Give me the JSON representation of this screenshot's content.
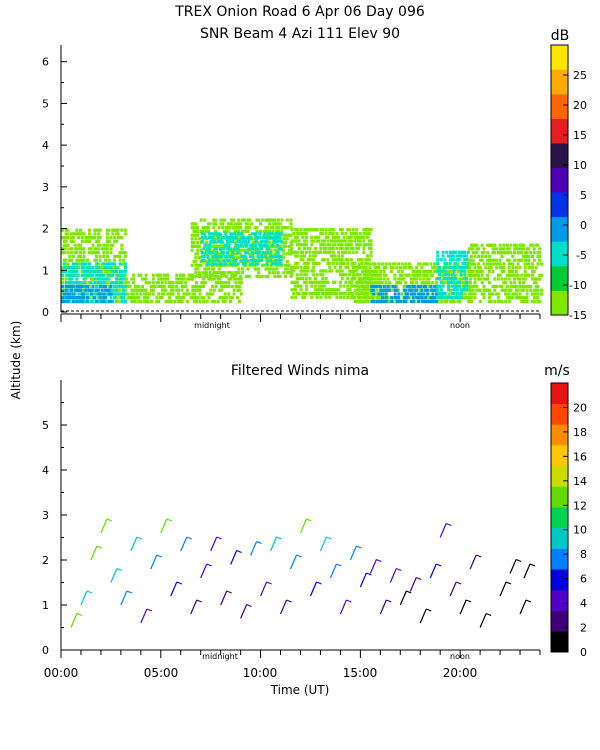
{
  "chart_data": [
    {
      "type": "heatmap",
      "title": "TREX Onion Road    6 Apr 06 Day 096",
      "subtitle": "SNR Beam 4 Azi 111 Elev 90",
      "ylabel": "Altitude (km)",
      "xlim": [
        0,
        24
      ],
      "ylim": [
        0,
        6.4
      ],
      "yticks": [
        "0",
        "1",
        "2",
        "3",
        "4",
        "5",
        "6"
      ],
      "x_markers": [
        "midnight",
        "noon"
      ],
      "colorbar": {
        "unit": "dB",
        "ticks": [
          "25",
          "20",
          "15",
          "10",
          "5",
          "0",
          "-5",
          "-10",
          "-15"
        ],
        "range": [
          -15,
          30
        ],
        "colors": [
          "#7fe600",
          "#00cc33",
          "#00e0c8",
          "#0099e6",
          "#0033e6",
          "#5000b4",
          "#281446",
          "#e61e1e",
          "#ff6600",
          "#ffaa00",
          "#ffe600"
        ]
      },
      "series": [
        {
          "x_range": [
            0,
            3.2
          ],
          "y_range": [
            0.2,
            2.0
          ],
          "snr_db": -13
        },
        {
          "x_range": [
            0,
            3.2
          ],
          "y_range": [
            0.2,
            1.1
          ],
          "snr_db": -6
        },
        {
          "x_range": [
            0,
            2.5
          ],
          "y_range": [
            0.2,
            0.6
          ],
          "snr_db": 0
        },
        {
          "x_range": [
            3.2,
            9.0
          ],
          "y_range": [
            0.2,
            0.9
          ],
          "snr_db": -12
        },
        {
          "x_range": [
            6.5,
            11.5
          ],
          "y_range": [
            0.8,
            2.2
          ],
          "snr_db": -12
        },
        {
          "x_range": [
            7.0,
            11.0
          ],
          "y_range": [
            1.1,
            1.9
          ],
          "snr_db": -6
        },
        {
          "x_range": [
            11.5,
            15.5
          ],
          "y_range": [
            0.3,
            2.0
          ],
          "snr_db": -12
        },
        {
          "x_range": [
            14.5,
            20.5
          ],
          "y_range": [
            0.2,
            1.1
          ],
          "snr_db": -12
        },
        {
          "x_range": [
            15.5,
            18.8
          ],
          "y_range": [
            0.2,
            0.6
          ],
          "snr_db": 0
        },
        {
          "x_range": [
            18.8,
            20.4
          ],
          "y_range": [
            0.3,
            1.4
          ],
          "snr_db": -3
        },
        {
          "x_range": [
            20.4,
            24.0
          ],
          "y_range": [
            0.2,
            1.6
          ],
          "snr_db": -12
        }
      ]
    },
    {
      "type": "scatter",
      "title": "Filtered Winds nima",
      "xlabel": "Time (UT)",
      "ylabel": "Altitude (km)",
      "xlim": [
        0,
        24
      ],
      "ylim": [
        0,
        6
      ],
      "xticks": [
        "00:00",
        "05:00",
        "10:00",
        "15:00",
        "20:00"
      ],
      "yticks": [
        "0",
        "1",
        "2",
        "3",
        "4",
        "5"
      ],
      "x_markers": [
        "midnight",
        "noon"
      ],
      "colorbar": {
        "unit": "m/s",
        "ticks": [
          "20",
          "18",
          "16",
          "14",
          "12",
          "10",
          "8",
          "6",
          "4",
          "2",
          "0"
        ],
        "range": [
          0,
          22
        ],
        "colors": [
          "#000000",
          "#3c0078",
          "#5000c8",
          "#0000dc",
          "#0080ff",
          "#00c8c8",
          "#00d250",
          "#64dc00",
          "#c8dc00",
          "#ffc800",
          "#ff8c00",
          "#ff4600",
          "#e61414"
        ]
      },
      "wind_barbs": [
        {
          "t": 0.5,
          "alt": 0.5,
          "speed_ms": 12
        },
        {
          "t": 1.0,
          "alt": 1.0,
          "speed_ms": 10
        },
        {
          "t": 1.5,
          "alt": 2.0,
          "speed_ms": 12
        },
        {
          "t": 2.0,
          "alt": 2.6,
          "speed_ms": 13
        },
        {
          "t": 2.5,
          "alt": 1.5,
          "speed_ms": 9
        },
        {
          "t": 3.0,
          "alt": 1.0,
          "speed_ms": 7
        },
        {
          "t": 3.5,
          "alt": 2.2,
          "speed_ms": 10
        },
        {
          "t": 4.0,
          "alt": 0.6,
          "speed_ms": 5
        },
        {
          "t": 4.5,
          "alt": 1.8,
          "speed_ms": 8
        },
        {
          "t": 5.0,
          "alt": 2.6,
          "speed_ms": 12
        },
        {
          "t": 5.5,
          "alt": 1.2,
          "speed_ms": 6
        },
        {
          "t": 6.0,
          "alt": 2.2,
          "speed_ms": 8
        },
        {
          "t": 6.5,
          "alt": 0.8,
          "speed_ms": 3
        },
        {
          "t": 7.0,
          "alt": 1.6,
          "speed_ms": 4
        },
        {
          "t": 7.5,
          "alt": 2.2,
          "speed_ms": 4
        },
        {
          "t": 8.0,
          "alt": 1.0,
          "speed_ms": 3
        },
        {
          "t": 8.5,
          "alt": 1.9,
          "speed_ms": 6
        },
        {
          "t": 9.0,
          "alt": 0.7,
          "speed_ms": 2
        },
        {
          "t": 9.5,
          "alt": 2.1,
          "speed_ms": 7
        },
        {
          "t": 10.0,
          "alt": 1.2,
          "speed_ms": 4
        },
        {
          "t": 10.5,
          "alt": 2.2,
          "speed_ms": 9
        },
        {
          "t": 11.0,
          "alt": 0.8,
          "speed_ms": 2
        },
        {
          "t": 11.5,
          "alt": 1.8,
          "speed_ms": 8
        },
        {
          "t": 12.0,
          "alt": 2.6,
          "speed_ms": 12
        },
        {
          "t": 12.5,
          "alt": 1.2,
          "speed_ms": 6
        },
        {
          "t": 13.0,
          "alt": 2.2,
          "speed_ms": 10
        },
        {
          "t": 13.5,
          "alt": 1.6,
          "speed_ms": 7
        },
        {
          "t": 14.0,
          "alt": 0.8,
          "speed_ms": 4
        },
        {
          "t": 14.5,
          "alt": 2.0,
          "speed_ms": 8
        },
        {
          "t": 15.0,
          "alt": 1.4,
          "speed_ms": 6
        },
        {
          "t": 15.5,
          "alt": 1.7,
          "speed_ms": 5
        },
        {
          "t": 16.0,
          "alt": 0.8,
          "speed_ms": 2
        },
        {
          "t": 16.5,
          "alt": 1.5,
          "speed_ms": 5
        },
        {
          "t": 17.0,
          "alt": 1.0,
          "speed_ms": 1
        },
        {
          "t": 17.5,
          "alt": 1.3,
          "speed_ms": 3
        },
        {
          "t": 18.0,
          "alt": 0.6,
          "speed_ms": 0
        },
        {
          "t": 18.5,
          "alt": 1.6,
          "speed_ms": 6
        },
        {
          "t": 19.0,
          "alt": 2.5,
          "speed_ms": 5
        },
        {
          "t": 19.5,
          "alt": 1.2,
          "speed_ms": 3
        },
        {
          "t": 20.0,
          "alt": 0.8,
          "speed_ms": 1
        },
        {
          "t": 20.5,
          "alt": 1.8,
          "speed_ms": 2
        },
        {
          "t": 21.0,
          "alt": 0.5,
          "speed_ms": 0
        },
        {
          "t": 22.0,
          "alt": 1.2,
          "speed_ms": 0
        },
        {
          "t": 22.5,
          "alt": 1.7,
          "speed_ms": 1
        },
        {
          "t": 23.0,
          "alt": 0.8,
          "speed_ms": 0
        },
        {
          "t": 23.2,
          "alt": 1.6,
          "speed_ms": 0
        }
      ]
    }
  ]
}
